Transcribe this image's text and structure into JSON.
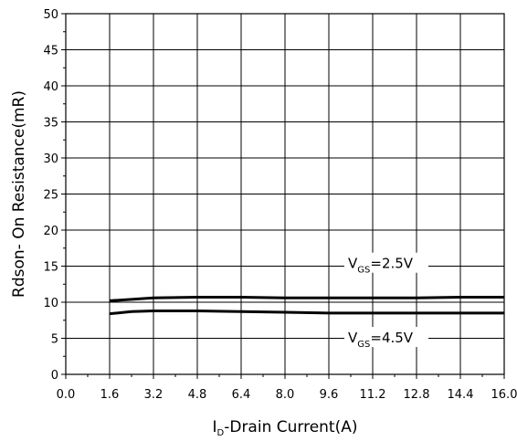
{
  "chart_data": {
    "type": "line",
    "xlabel_main": "I",
    "xlabel_sub": "D",
    "xlabel_rest": "-Drain Current(A)",
    "ylabel": "Rdson- On Resistance(mR)",
    "xlim": [
      0,
      16
    ],
    "ylim": [
      0,
      50
    ],
    "x_ticks": [
      "0.0",
      "1.6",
      "3.2",
      "4.8",
      "6.4",
      "8.0",
      "9.6",
      "11.2",
      "12.8",
      "14.4",
      "16.0"
    ],
    "y_ticks": [
      "0",
      "5",
      "10",
      "15",
      "20",
      "25",
      "30",
      "35",
      "40",
      "45",
      "50"
    ],
    "grid": true,
    "series": [
      {
        "name": "VGS=2.5V",
        "label_main": "V",
        "label_sub": "GS",
        "label_rest": "=2.5V",
        "label_at": [
          10.3,
          15.1
        ],
        "x": [
          1.6,
          2.4,
          3.2,
          4.8,
          6.4,
          8.0,
          9.6,
          11.2,
          12.8,
          14.4,
          16.0
        ],
        "y": [
          10.2,
          10.4,
          10.6,
          10.7,
          10.7,
          10.6,
          10.6,
          10.6,
          10.6,
          10.7,
          10.7
        ]
      },
      {
        "name": "VGS=4.5V",
        "label_main": "V",
        "label_sub": "GS",
        "label_rest": "=4.5V",
        "label_at": [
          10.3,
          4.8
        ],
        "x": [
          1.6,
          2.4,
          3.2,
          4.8,
          6.4,
          8.0,
          9.6,
          11.2,
          12.8,
          14.4,
          16.0
        ],
        "y": [
          8.4,
          8.7,
          8.8,
          8.8,
          8.7,
          8.6,
          8.5,
          8.5,
          8.5,
          8.5,
          8.5
        ]
      }
    ]
  }
}
